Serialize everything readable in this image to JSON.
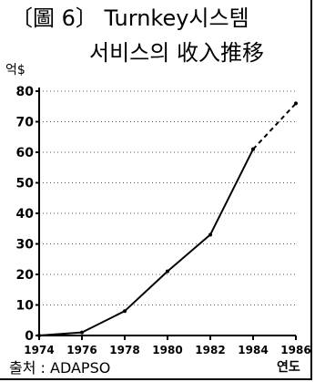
{
  "title_line1": "〔圖 6〕 Turnkey시스템",
  "title_line2": "서비스의 收入推移",
  "unit_label": "억$",
  "source": "출처 : ADAPSO",
  "chart_data": {
    "type": "line",
    "x": [
      1974,
      1976,
      1978,
      1980,
      1982,
      1984,
      1986
    ],
    "xticks": [
      "1974",
      "1976",
      "1978",
      "1980",
      "1982",
      "1984",
      "1986"
    ],
    "yticks": [
      "0",
      "10",
      "20",
      "30",
      "40",
      "50",
      "60",
      "70",
      "80"
    ],
    "series": [
      {
        "style": "solid",
        "points": [
          [
            1974,
            0
          ],
          [
            1976,
            1
          ],
          [
            1978,
            8
          ],
          [
            1980,
            21
          ],
          [
            1982,
            33
          ],
          [
            1984,
            61
          ]
        ]
      },
      {
        "style": "dashed",
        "points": [
          [
            1984,
            61
          ],
          [
            1986,
            76
          ]
        ]
      }
    ],
    "xlabel": "연도",
    "ylabel": "억$",
    "xlim": [
      1974,
      1986
    ],
    "ylim": [
      0,
      80
    ],
    "grid": "horizontal dotted"
  }
}
